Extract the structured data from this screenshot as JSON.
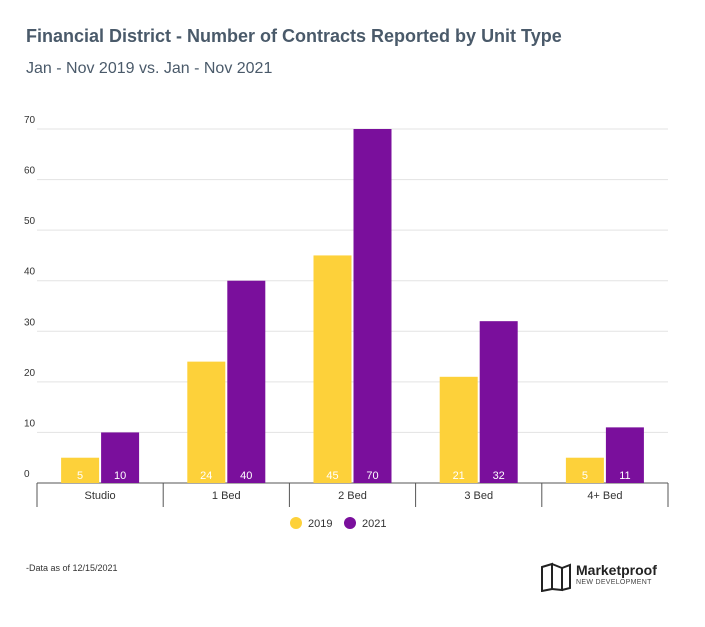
{
  "header": {
    "title": "Financial District - Number of Contracts Reported by Unit Type",
    "subtitle": "Jan - Nov 2019 vs. Jan - Nov 2021"
  },
  "chart_data": {
    "type": "bar",
    "categories": [
      "Studio",
      "1 Bed",
      "2 Bed",
      "3 Bed",
      "4+ Bed"
    ],
    "series": [
      {
        "name": "2019",
        "color": "#fdd13a",
        "values": [
          5,
          24,
          45,
          21,
          5
        ]
      },
      {
        "name": "2021",
        "color": "#7a0f9c",
        "values": [
          10,
          40,
          70,
          32,
          11
        ]
      }
    ],
    "ylim": [
      0,
      70
    ],
    "yticks": [
      0,
      10,
      20,
      30,
      40,
      50,
      60,
      70
    ],
    "grid": true,
    "legend_position": "bottom-center"
  },
  "footer": {
    "note": "-Data as of 12/15/2021",
    "logo_name": "Marketproof",
    "logo_sub": "NEW DEVELOPMENT"
  }
}
